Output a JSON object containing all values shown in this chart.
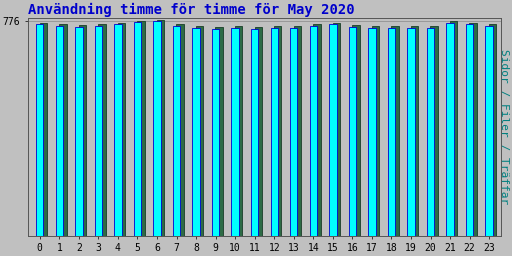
{
  "title": "Användning timme för timme för May 2020",
  "ylabel": "Sidor / Filer / Träffar",
  "categories": [
    0,
    1,
    2,
    3,
    4,
    5,
    6,
    7,
    8,
    9,
    10,
    11,
    12,
    13,
    14,
    15,
    16,
    17,
    18,
    19,
    20,
    21,
    22,
    23
  ],
  "bar_cyan": [
    762,
    758,
    754,
    756,
    762,
    771,
    775,
    758,
    750,
    746,
    749,
    746,
    749,
    751,
    756,
    762,
    753,
    751,
    751,
    751,
    751,
    769,
    763,
    756
  ],
  "bar_green": [
    769,
    763,
    759,
    763,
    769,
    775,
    777,
    763,
    755,
    753,
    755,
    753,
    756,
    757,
    763,
    769,
    759,
    757,
    757,
    757,
    757,
    775,
    769,
    763
  ],
  "cyan_color": "#00FFFF",
  "green_color": "#2D6B45",
  "cyan_edge": "#0000CC",
  "green_edge": "#1A3D28",
  "background_color": "#C0C0C0",
  "title_color": "#0000CC",
  "ylabel_color": "#008080",
  "ytick_value": 776,
  "ylim_min": 0,
  "ylim_max": 785,
  "title_fontsize": 10,
  "ylabel_fontsize": 8
}
